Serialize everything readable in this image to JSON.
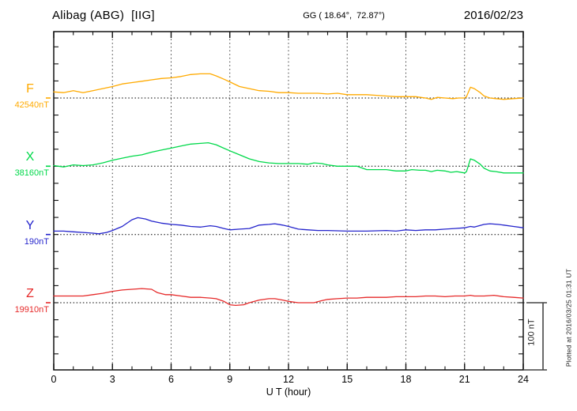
{
  "header": {
    "station": "Alibag (ABG)  [IIG]",
    "coords": "GG ( 18.64°,  72.87°)",
    "date": "2016/02/23"
  },
  "axis": {
    "x_label": "U T (hour)"
  },
  "scale_bar": {
    "label": "100 nT"
  },
  "footer": {
    "plotted_at": "Plotted at 2016/03/25 01:31 UT"
  },
  "chart_data": {
    "type": "line",
    "title": "Alibag (ABG) [IIG] magnetogram",
    "date": "2016/02/23",
    "xlabel": "U T (hour)",
    "x_range": [
      0,
      24
    ],
    "x_ticks": [
      0,
      3,
      6,
      9,
      12,
      15,
      18,
      21,
      24
    ],
    "grid": "vertical dotted every 3 h, dotted baseline per channel",
    "amplitude_scale": "100 nT per division",
    "y_unit": "nT offset from baseline",
    "series": [
      {
        "name": "F",
        "baseline_label": "42540nT",
        "color": "#FFAA00",
        "points": [
          [
            0,
            9
          ],
          [
            0.5,
            8
          ],
          [
            1,
            11
          ],
          [
            1.5,
            8
          ],
          [
            2,
            11
          ],
          [
            2.5,
            14
          ],
          [
            3,
            17
          ],
          [
            3.5,
            21
          ],
          [
            4,
            23
          ],
          [
            4.5,
            25
          ],
          [
            5,
            27
          ],
          [
            5.5,
            29
          ],
          [
            6,
            30
          ],
          [
            6.5,
            32
          ],
          [
            7,
            35
          ],
          [
            7.5,
            36
          ],
          [
            8,
            36
          ],
          [
            8.3,
            33
          ],
          [
            8.7,
            28
          ],
          [
            9,
            24
          ],
          [
            9.5,
            17
          ],
          [
            10,
            14
          ],
          [
            10.5,
            11
          ],
          [
            11,
            10
          ],
          [
            11.5,
            8
          ],
          [
            12,
            8
          ],
          [
            12.5,
            7
          ],
          [
            13,
            7
          ],
          [
            13.5,
            7
          ],
          [
            14,
            6
          ],
          [
            14.5,
            7
          ],
          [
            15,
            5
          ],
          [
            15.5,
            5
          ],
          [
            16,
            5
          ],
          [
            16.5,
            4
          ],
          [
            17,
            3
          ],
          [
            17.5,
            2
          ],
          [
            18,
            2
          ],
          [
            18.5,
            2
          ],
          [
            19,
            0
          ],
          [
            19.3,
            -2
          ],
          [
            19.6,
            1
          ],
          [
            20,
            0
          ],
          [
            20.4,
            -1
          ],
          [
            20.7,
            0
          ],
          [
            21,
            0
          ],
          [
            21.1,
            2
          ],
          [
            21.3,
            16
          ],
          [
            21.5,
            14
          ],
          [
            21.8,
            8
          ],
          [
            22,
            3
          ],
          [
            22.3,
            0
          ],
          [
            22.6,
            -1
          ],
          [
            23,
            -2
          ],
          [
            23.5,
            -1
          ],
          [
            24,
            0
          ]
        ]
      },
      {
        "name": "X",
        "baseline_label": "38160nT",
        "color": "#00D94A",
        "points": [
          [
            0,
            1
          ],
          [
            0.5,
            -1
          ],
          [
            1,
            2
          ],
          [
            1.5,
            1
          ],
          [
            2,
            2
          ],
          [
            2.5,
            5
          ],
          [
            3,
            9
          ],
          [
            3.5,
            12
          ],
          [
            4,
            15
          ],
          [
            4.5,
            17
          ],
          [
            5,
            21
          ],
          [
            5.5,
            24
          ],
          [
            6,
            27
          ],
          [
            6.5,
            30
          ],
          [
            7,
            33
          ],
          [
            7.5,
            34
          ],
          [
            7.9,
            35
          ],
          [
            8.3,
            32
          ],
          [
            8.6,
            28
          ],
          [
            9,
            23
          ],
          [
            9.5,
            17
          ],
          [
            10,
            11
          ],
          [
            10.5,
            7
          ],
          [
            11,
            5
          ],
          [
            11.5,
            4
          ],
          [
            12,
            4
          ],
          [
            12.5,
            4
          ],
          [
            13,
            3
          ],
          [
            13.3,
            5
          ],
          [
            13.7,
            4
          ],
          [
            14,
            2
          ],
          [
            14.5,
            0
          ],
          [
            15,
            0
          ],
          [
            15.5,
            0
          ],
          [
            16,
            -5
          ],
          [
            16.5,
            -5
          ],
          [
            17,
            -5
          ],
          [
            17.5,
            -7
          ],
          [
            18,
            -7
          ],
          [
            18.3,
            -5
          ],
          [
            18.7,
            -6
          ],
          [
            19,
            -6
          ],
          [
            19.3,
            -8
          ],
          [
            19.6,
            -6
          ],
          [
            20,
            -7
          ],
          [
            20.3,
            -9
          ],
          [
            20.6,
            -8
          ],
          [
            21,
            -10
          ],
          [
            21.1,
            -8
          ],
          [
            21.3,
            11
          ],
          [
            21.5,
            9
          ],
          [
            21.8,
            3
          ],
          [
            22,
            -3
          ],
          [
            22.3,
            -7
          ],
          [
            22.6,
            -8
          ],
          [
            23,
            -10
          ],
          [
            23.5,
            -10
          ],
          [
            24,
            -10
          ]
        ]
      },
      {
        "name": "Y",
        "baseline_label": "190nT",
        "color": "#2424CC",
        "points": [
          [
            0,
            5
          ],
          [
            0.5,
            5
          ],
          [
            1,
            4
          ],
          [
            1.5,
            3
          ],
          [
            2,
            2
          ],
          [
            2.3,
            1
          ],
          [
            2.7,
            3
          ],
          [
            3,
            6
          ],
          [
            3.5,
            12
          ],
          [
            4,
            22
          ],
          [
            4.3,
            25
          ],
          [
            4.7,
            23
          ],
          [
            5,
            20
          ],
          [
            5.5,
            17
          ],
          [
            6,
            15
          ],
          [
            6.5,
            14
          ],
          [
            7,
            12
          ],
          [
            7.5,
            11
          ],
          [
            8,
            13
          ],
          [
            8.3,
            12
          ],
          [
            8.7,
            9
          ],
          [
            9,
            7
          ],
          [
            9.5,
            8
          ],
          [
            10,
            9
          ],
          [
            10.5,
            14
          ],
          [
            11,
            15
          ],
          [
            11.3,
            16
          ],
          [
            11.7,
            14
          ],
          [
            12,
            12
          ],
          [
            12.5,
            8
          ],
          [
            13,
            7
          ],
          [
            13.5,
            6
          ],
          [
            14,
            6
          ],
          [
            15,
            5
          ],
          [
            16,
            5
          ],
          [
            17,
            6
          ],
          [
            17.5,
            5
          ],
          [
            18,
            7
          ],
          [
            18.5,
            6
          ],
          [
            19,
            7
          ],
          [
            19.5,
            7
          ],
          [
            20,
            8
          ],
          [
            20.5,
            9
          ],
          [
            21,
            10
          ],
          [
            21.3,
            12
          ],
          [
            21.5,
            11
          ],
          [
            22,
            15
          ],
          [
            22.3,
            16
          ],
          [
            22.7,
            15
          ],
          [
            23,
            14
          ],
          [
            23.5,
            12
          ],
          [
            24,
            10
          ]
        ]
      },
      {
        "name": "Z",
        "baseline_label": "19910nT",
        "color": "#E62A2A",
        "points": [
          [
            0,
            10
          ],
          [
            0.5,
            10
          ],
          [
            1,
            10
          ],
          [
            1.5,
            10
          ],
          [
            2,
            12
          ],
          [
            2.5,
            14
          ],
          [
            3,
            17
          ],
          [
            3.5,
            19
          ],
          [
            4,
            20
          ],
          [
            4.5,
            21
          ],
          [
            5,
            20
          ],
          [
            5.3,
            15
          ],
          [
            5.7,
            12
          ],
          [
            6,
            12
          ],
          [
            6.5,
            10
          ],
          [
            7,
            8
          ],
          [
            7.5,
            8
          ],
          [
            8,
            7
          ],
          [
            8.3,
            6
          ],
          [
            8.7,
            2
          ],
          [
            9,
            -3
          ],
          [
            9.3,
            -4
          ],
          [
            9.7,
            -3
          ],
          [
            10,
            0
          ],
          [
            10.5,
            4
          ],
          [
            11,
            6
          ],
          [
            11.3,
            6
          ],
          [
            11.7,
            4
          ],
          [
            12,
            2
          ],
          [
            12.5,
            0
          ],
          [
            13,
            0
          ],
          [
            13.3,
            0
          ],
          [
            13.7,
            3
          ],
          [
            14,
            5
          ],
          [
            14.5,
            6
          ],
          [
            15,
            7
          ],
          [
            15.5,
            7
          ],
          [
            16,
            8
          ],
          [
            16.5,
            8
          ],
          [
            17,
            8
          ],
          [
            17.5,
            9
          ],
          [
            18,
            9
          ],
          [
            18.5,
            9
          ],
          [
            19,
            10
          ],
          [
            19.5,
            10
          ],
          [
            20,
            9
          ],
          [
            20.5,
            10
          ],
          [
            21,
            10
          ],
          [
            21.3,
            11
          ],
          [
            21.5,
            10
          ],
          [
            22,
            10
          ],
          [
            22.5,
            11
          ],
          [
            23,
            9
          ],
          [
            23.5,
            8
          ],
          [
            24,
            7
          ]
        ]
      }
    ]
  }
}
